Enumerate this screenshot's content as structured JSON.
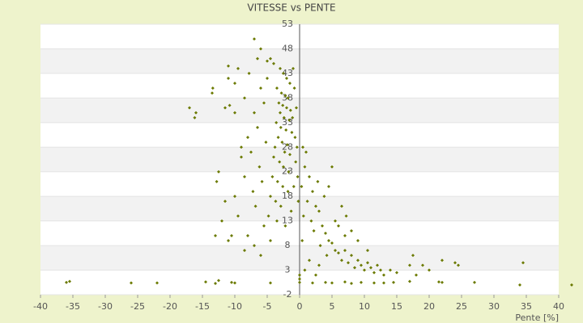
{
  "chart_data": {
    "type": "scatter",
    "title": "VITESSE vs PENTE",
    "x_label": "Pente [%]",
    "x": [
      -3,
      -2.5,
      -2,
      -1.5,
      -3.5,
      -2.8,
      -2.2,
      -1.8,
      -3.2,
      -2.6,
      -2,
      -1.4,
      -3,
      -2.4,
      -1.6,
      -3.6,
      -2.9,
      -2.1,
      -1.2,
      -3.3,
      -2.7,
      -1.9,
      -3.8,
      -2.3,
      -1.5,
      -4,
      -3.1,
      -2.5,
      -1.7,
      -4.2,
      -3.4,
      -2.6,
      -1.8,
      -4.5,
      -3.7,
      -2.9,
      -1.3,
      -4.8,
      -3.5,
      -2.2,
      -1,
      -0.8,
      -0.5,
      -1.1,
      -0.7,
      -0.4,
      -0.6,
      -0.3,
      -0.9,
      -0.2,
      -5,
      -6,
      -5.5,
      -7,
      -6.5,
      -8,
      -5.2,
      -7.5,
      -9,
      -6.2,
      -8.5,
      -5.8,
      -7.2,
      -10,
      -6.8,
      -9.5,
      -5.5,
      -8,
      -11,
      -7,
      -12.5,
      -12.8,
      -11.5,
      -13,
      -10.5,
      -8.5,
      -6,
      -4.5,
      -10,
      -9.5,
      -11,
      -11,
      -13.5,
      -13.4,
      -16,
      -17,
      -16.2,
      -11.5,
      -10.8,
      -7,
      -6,
      -6.5,
      -5,
      -4.5,
      -4,
      -12,
      -9,
      -8.5,
      -10,
      -7.8,
      0.5,
      1,
      0.8,
      1.5,
      0.3,
      2,
      1.2,
      2.5,
      0.6,
      3,
      1.8,
      3.5,
      2.2,
      4,
      4.5,
      3.2,
      5,
      5.5,
      6,
      4.2,
      6.5,
      7,
      7.5,
      8,
      8.5,
      9,
      9.5,
      10,
      10.5,
      11,
      11.5,
      12,
      12.5,
      13,
      14,
      15,
      17,
      17.5,
      18,
      19,
      20,
      22,
      24,
      24.5,
      27,
      34.5,
      34,
      42,
      3.8,
      5.5,
      6,
      7,
      2.8,
      4.5,
      5,
      6.5,
      8,
      9,
      7.2,
      10.5,
      -36,
      -35.5,
      -26,
      -22,
      -14.5,
      -13,
      -12.5,
      -10.5,
      -10,
      -4.5,
      0,
      0,
      0,
      2,
      4,
      5,
      7,
      8,
      9.5,
      11.5,
      13,
      14.5,
      17,
      21.5,
      22,
      0.8,
      1.5,
      2.5,
      3,
      0.4
    ],
    "values": [
      44,
      43,
      42,
      41,
      40,
      39,
      38.5,
      38,
      37,
      36.5,
      36,
      35.5,
      35,
      34,
      33.5,
      33,
      32,
      31.5,
      31,
      30,
      29,
      28.5,
      28,
      27,
      26.5,
      26,
      25,
      24,
      23,
      22,
      21,
      20,
      19,
      18,
      17,
      16,
      15,
      14,
      13,
      12,
      44,
      40,
      36,
      34,
      30,
      28,
      25,
      22,
      20,
      17,
      42,
      40,
      37,
      35,
      32,
      30,
      29,
      27,
      26,
      24,
      22,
      21,
      19,
      18,
      16,
      14,
      12,
      10,
      9,
      8,
      23,
      21,
      17,
      10,
      10,
      7,
      6,
      9,
      41,
      44,
      44.5,
      42,
      39,
      40,
      35,
      36,
      34,
      36,
      36.5,
      50,
      48,
      46,
      45.5,
      46,
      45,
      13,
      28,
      38,
      35,
      43,
      28,
      27,
      24,
      22,
      20,
      19,
      17,
      16,
      14,
      15,
      13,
      12,
      11,
      10.5,
      9,
      8,
      8.5,
      7,
      6.5,
      6,
      5,
      7,
      4.5,
      6,
      3.5,
      5,
      4,
      3,
      4.5,
      3.5,
      2.5,
      4,
      3,
      2,
      3,
      2.5,
      4,
      6,
      2,
      4,
      3,
      5,
      4.5,
      4,
      0.5,
      4.5,
      0,
      0,
      18,
      13,
      12,
      10,
      21,
      20,
      24,
      16,
      11,
      9,
      14,
      7,
      0.5,
      0.7,
      0.4,
      0.4,
      0.6,
      0.3,
      0.9,
      0.5,
      0.4,
      0.4,
      0.5,
      1.2,
      2,
      0.4,
      0.5,
      0.4,
      0.6,
      0.3,
      0.5,
      0.4,
      0.4,
      0.5,
      0.7,
      0.6,
      0.5,
      3,
      5,
      2,
      4,
      9
    ],
    "color": "#6b7a00",
    "xlim": [
      -40,
      40
    ],
    "xticks": [
      -40,
      -35,
      -30,
      -25,
      -20,
      -15,
      -10,
      -5,
      0,
      5,
      10,
      15,
      20,
      25,
      30,
      35,
      40
    ],
    "ylim": [
      -2,
      53
    ],
    "yticks": [
      -2,
      3,
      8,
      13,
      18,
      23,
      28,
      33,
      38,
      43,
      48,
      53
    ],
    "grid": true
  }
}
